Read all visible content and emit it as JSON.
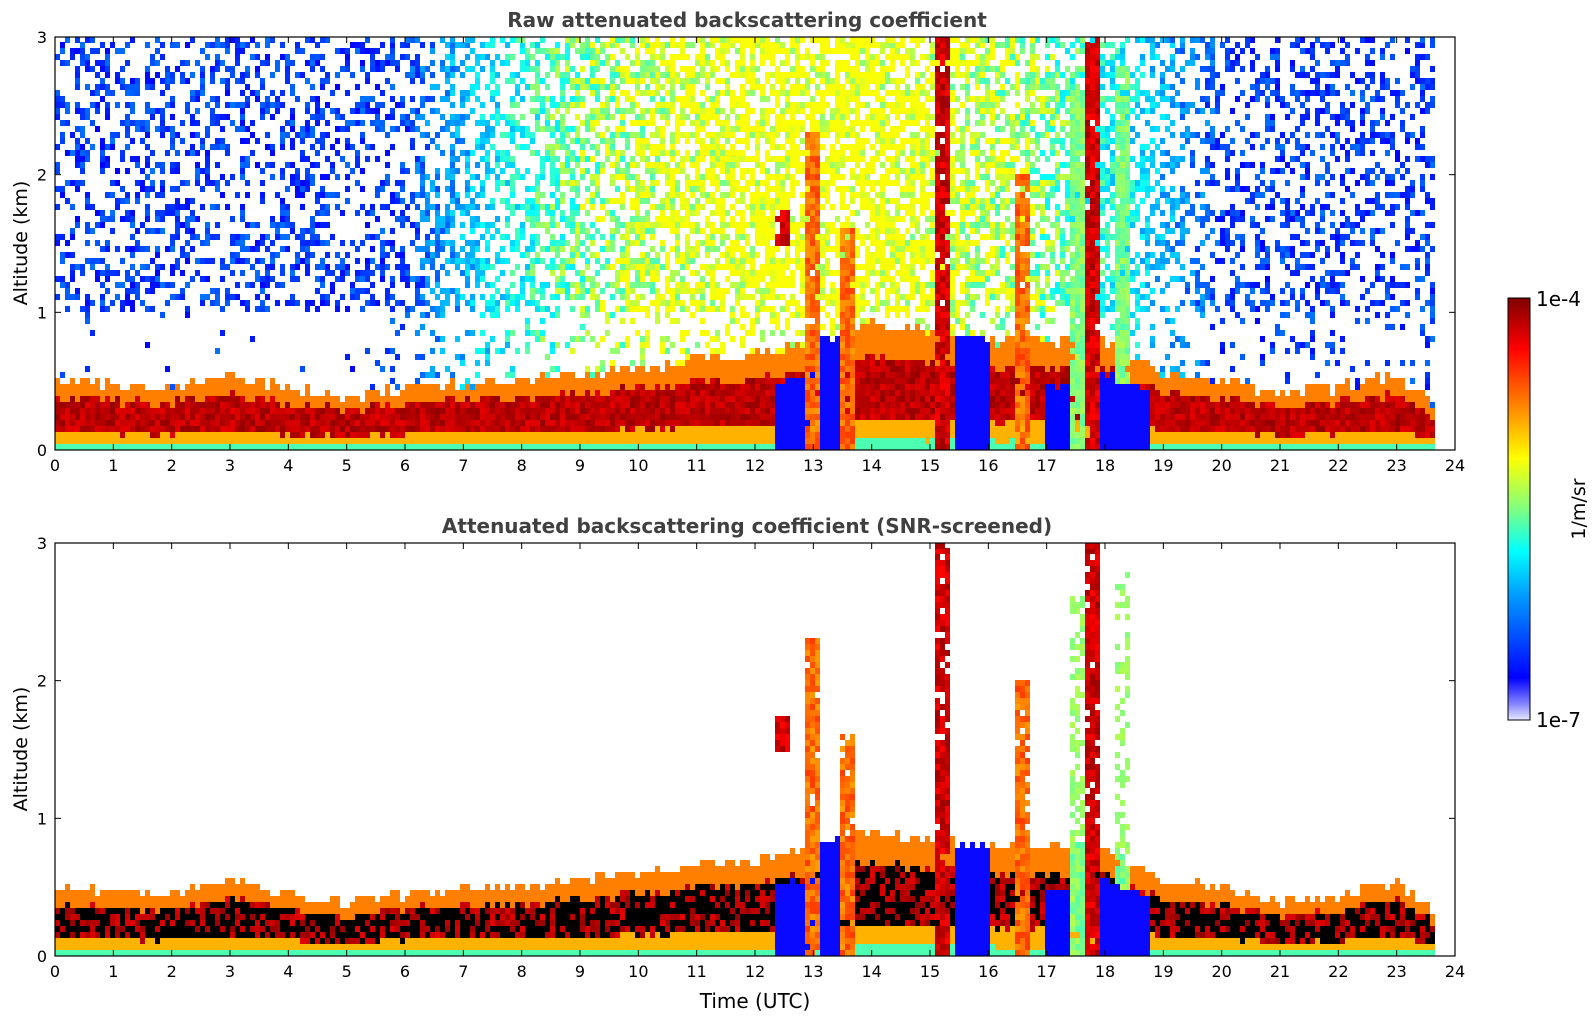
{
  "chart_data": [
    {
      "type": "heatmap",
      "title": "Raw attenuated backscattering coefficient",
      "xlabel": "",
      "ylabel": "Altitude (km)",
      "xlim": [
        0,
        24
      ],
      "ylim": [
        0,
        3
      ],
      "x_ticks": [
        "0",
        "1",
        "2",
        "3",
        "4",
        "5",
        "6",
        "7",
        "8",
        "9",
        "10",
        "11",
        "12",
        "13",
        "14",
        "15",
        "16",
        "17",
        "18",
        "19",
        "20",
        "21",
        "22",
        "23",
        "24"
      ],
      "y_ticks": [
        "0",
        "1",
        "2",
        "3"
      ],
      "data_end_time": 23.7,
      "boundary_layer_top_km": [
        {
          "t": 0,
          "z": 0.5
        },
        {
          "t": 2,
          "z": 0.45
        },
        {
          "t": 3,
          "z": 0.55
        },
        {
          "t": 4,
          "z": 0.45
        },
        {
          "t": 5,
          "z": 0.38
        },
        {
          "t": 6,
          "z": 0.45
        },
        {
          "t": 8,
          "z": 0.5
        },
        {
          "t": 10,
          "z": 0.6
        },
        {
          "t": 12,
          "z": 0.7
        },
        {
          "t": 14,
          "z": 0.9
        },
        {
          "t": 16,
          "z": 0.8
        },
        {
          "t": 18,
          "z": 0.8
        },
        {
          "t": 19,
          "z": 0.55
        },
        {
          "t": 20,
          "z": 0.5
        },
        {
          "t": 21,
          "z": 0.4
        },
        {
          "t": 22,
          "z": 0.45
        },
        {
          "t": 23,
          "z": 0.55
        },
        {
          "t": 23.7,
          "z": 0.3
        }
      ],
      "plumes": [
        {
          "t": 12.5,
          "z0": 1.5,
          "z1": 1.75,
          "level": "very-high"
        },
        {
          "t": 13.0,
          "z0": 0.0,
          "z1": 2.3,
          "level": "high"
        },
        {
          "t": 13.6,
          "z0": 0.0,
          "z1": 1.6,
          "level": "high"
        },
        {
          "t": 15.2,
          "z0": 0.0,
          "z1": 3.0,
          "level": "very-high"
        },
        {
          "t": 16.6,
          "z0": 0.0,
          "z1": 2.0,
          "level": "high"
        },
        {
          "t": 17.5,
          "z0": 0.0,
          "z1": 2.6,
          "level": "medium"
        },
        {
          "t": 17.8,
          "z0": 0.0,
          "z1": 3.0,
          "level": "very-high"
        },
        {
          "t": 18.3,
          "z0": 0.5,
          "z1": 2.8,
          "level": "medium"
        }
      ]
    },
    {
      "type": "heatmap",
      "title": "Attenuated backscattering coefficient (SNR-screened)",
      "xlabel": "Time (UTC)",
      "ylabel": "Altitude (km)",
      "xlim": [
        0,
        24
      ],
      "ylim": [
        0,
        3
      ],
      "x_ticks": [
        "0",
        "1",
        "2",
        "3",
        "4",
        "5",
        "6",
        "7",
        "8",
        "9",
        "10",
        "11",
        "12",
        "13",
        "14",
        "15",
        "16",
        "17",
        "18",
        "19",
        "20",
        "21",
        "22",
        "23",
        "24"
      ],
      "y_ticks": [
        "0",
        "1",
        "2",
        "3"
      ],
      "data_end_time": 23.7,
      "screening": "SNR"
    }
  ],
  "colorbar": {
    "label": "1/m/sr",
    "min_label": "1e-7",
    "max_label": "1e-4",
    "scale": "log",
    "colormap": [
      "#e8e8ff",
      "#0000ff",
      "#00a0ff",
      "#00ffff",
      "#80ff80",
      "#ffff00",
      "#ff8000",
      "#ff0000",
      "#800000"
    ]
  },
  "colors": {
    "title_text": "#404040",
    "axis": "#000000"
  }
}
